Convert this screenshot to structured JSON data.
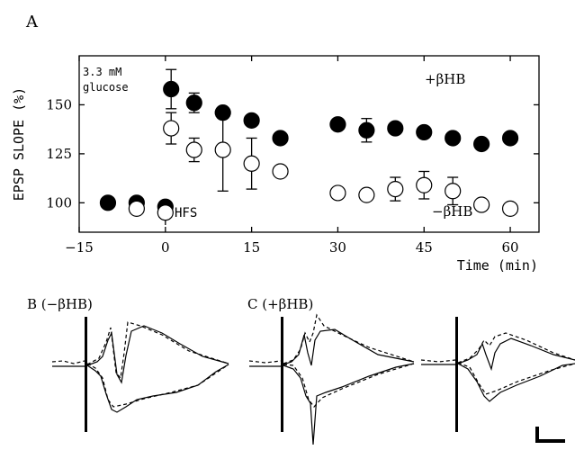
{
  "panel_labels": {
    "a": "A",
    "b": "B (−βHB)",
    "c": "C (+βHB)"
  },
  "chart_data": {
    "type": "scatter",
    "ylabel": "EPSP SLOPE (%)",
    "xlabel": "Time (min)",
    "xlim": [
      -15,
      65
    ],
    "ylim": [
      85,
      175
    ],
    "xticks": [
      -15,
      0,
      15,
      30,
      45,
      60
    ],
    "xtick_labels": [
      "−15",
      "0",
      "15",
      "30",
      "45",
      "60"
    ],
    "yticks": [
      100,
      125,
      150
    ],
    "ytick_labels": [
      "100",
      "125",
      "150"
    ],
    "grid": false,
    "annotations": {
      "condition": [
        "3.3 mM",
        "glucose"
      ],
      "stimulus": "HFS",
      "stimulus_time": 0
    },
    "series": [
      {
        "name": "+βHB",
        "marker": "filled-circle",
        "x": [
          -10,
          -5,
          0,
          1,
          5,
          10,
          15,
          20,
          30,
          35,
          40,
          45,
          50,
          55,
          60
        ],
        "y": [
          100,
          100,
          98,
          158,
          151,
          146,
          142,
          133,
          140,
          137,
          138,
          136,
          133,
          130,
          133
        ],
        "err": [
          0,
          0,
          0,
          10,
          5,
          0,
          0,
          0,
          0,
          6,
          0,
          0,
          0,
          0,
          0
        ]
      },
      {
        "name": "−βHB",
        "marker": "open-circle",
        "x": [
          -5,
          0,
          1,
          5,
          10,
          15,
          20,
          30,
          35,
          40,
          45,
          50,
          55,
          60
        ],
        "y": [
          97,
          95,
          138,
          127,
          127,
          120,
          116,
          105,
          104,
          107,
          109,
          106,
          99,
          97
        ],
        "err": [
          0,
          0,
          8,
          6,
          21,
          13,
          0,
          0,
          0,
          6,
          7,
          7,
          0,
          0
        ]
      }
    ]
  }
}
